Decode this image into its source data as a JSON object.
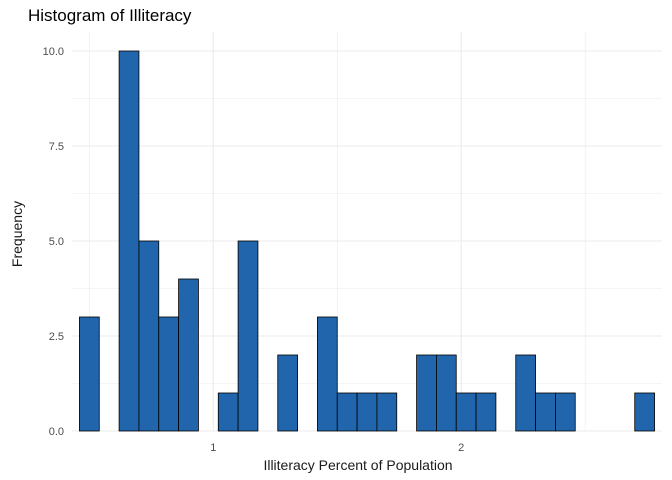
{
  "chart_data": {
    "type": "bar",
    "title": "Histogram of Illiteracy",
    "xlabel": "Illiteracy Percent of Population",
    "ylabel": "Frequency",
    "bin_width": 0.08,
    "bin_centers": [
      0.5,
      0.58,
      0.66,
      0.74,
      0.82,
      0.9,
      0.98,
      1.06,
      1.14,
      1.22,
      1.3,
      1.38,
      1.46,
      1.54,
      1.62,
      1.7,
      1.78,
      1.86,
      1.94,
      2.02,
      2.1,
      2.18,
      2.26,
      2.34,
      2.42,
      2.5,
      2.58,
      2.66,
      2.74
    ],
    "values": [
      3,
      0,
      10,
      5,
      3,
      4,
      0,
      1,
      5,
      0,
      2,
      0,
      3,
      1,
      1,
      1,
      0,
      2,
      2,
      1,
      1,
      0,
      2,
      1,
      1,
      0,
      0,
      0,
      1
    ],
    "xlim": [
      0.43,
      2.81
    ],
    "ylim": [
      0,
      10.5
    ],
    "x_ticks": [
      1,
      2
    ],
    "x_tick_labels": [
      "1",
      "2"
    ],
    "y_ticks": [
      0,
      2.5,
      5,
      7.5,
      10
    ],
    "y_tick_labels": [
      "0.0",
      "2.5",
      "5.0",
      "7.5",
      "10.0"
    ],
    "grid": true,
    "legend": "none",
    "bar_fill": "#2166ac",
    "bar_stroke": "#000000"
  }
}
